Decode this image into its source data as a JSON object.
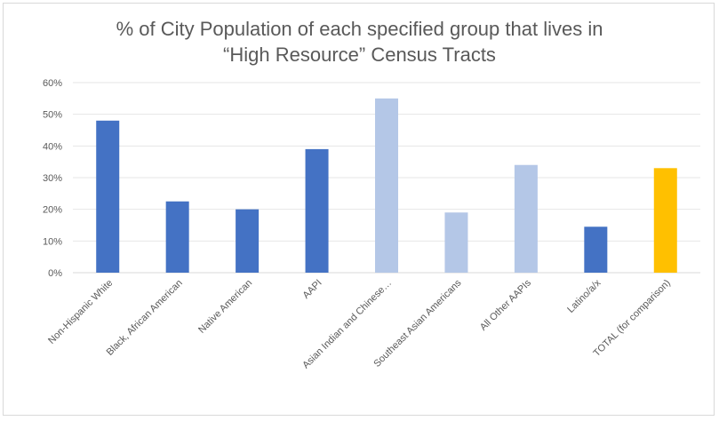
{
  "chart_data": {
    "type": "bar",
    "title_lines": [
      "% of City Population of each specified group that lives in",
      "“High Resource” Census Tracts"
    ],
    "xlabel": "",
    "ylabel": "",
    "ylim": [
      0,
      60
    ],
    "ytick_values": [
      0,
      10,
      20,
      30,
      40,
      50,
      60
    ],
    "ytick_labels": [
      "0%",
      "10%",
      "20%",
      "30%",
      "40%",
      "50%",
      "60%"
    ],
    "categories": [
      "Non-Hispanic White",
      "Black, African American",
      "Native American",
      "AAPI",
      "Asian Indian and Chinese…",
      "Southeast Asian Americans",
      "All Other AAPIs",
      "Latino/a/x",
      "TOTAL (for comparison)"
    ],
    "values": [
      48,
      22.5,
      20,
      39,
      55,
      19,
      34,
      14.5,
      33
    ],
    "bar_colors": [
      "#4472c4",
      "#4472c4",
      "#4472c4",
      "#4472c4",
      "#b4c7e7",
      "#b4c7e7",
      "#b4c7e7",
      "#4472c4",
      "#ffc000"
    ],
    "grid": true,
    "legend": "none"
  }
}
